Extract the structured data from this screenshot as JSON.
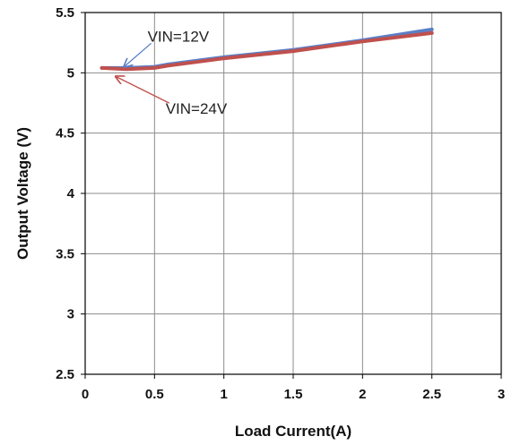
{
  "chart_data": {
    "type": "line",
    "title": "",
    "xlabel": "Load Current(A)",
    "ylabel": "Output Voltage (V)",
    "xlim": [
      0,
      3
    ],
    "ylim": [
      2.5,
      5.5
    ],
    "x_ticks": [
      "0",
      "0.5",
      "1",
      "1.5",
      "2",
      "2.5",
      "3"
    ],
    "y_ticks": [
      "2.5",
      "3",
      "3.5",
      "4",
      "4.5",
      "5",
      "5.5"
    ],
    "grid": true,
    "legend": "none",
    "series": [
      {
        "name": "VIN=12V",
        "color": "#5b7fc6",
        "x": [
          0.12,
          0.3,
          0.5,
          0.6,
          1.0,
          1.5,
          2.0,
          2.5
        ],
        "y": [
          5.04,
          5.04,
          5.05,
          5.07,
          5.13,
          5.19,
          5.27,
          5.36
        ]
      },
      {
        "name": "VIN=24V",
        "color": "#c0504d",
        "x": [
          0.12,
          0.3,
          0.5,
          0.6,
          1.0,
          1.5,
          2.0,
          2.5
        ],
        "y": [
          5.04,
          5.03,
          5.04,
          5.06,
          5.12,
          5.18,
          5.26,
          5.33
        ]
      }
    ],
    "annotations": [
      {
        "text": "VIN=12V",
        "color": "#5b7fc6",
        "point": [
          0.28,
          5.05
        ],
        "text_at": [
          0.45,
          5.26
        ]
      },
      {
        "text": "VIN=24V",
        "color": "#c0504d",
        "point": [
          0.22,
          4.97
        ],
        "text_at": [
          0.58,
          4.66
        ]
      }
    ]
  }
}
